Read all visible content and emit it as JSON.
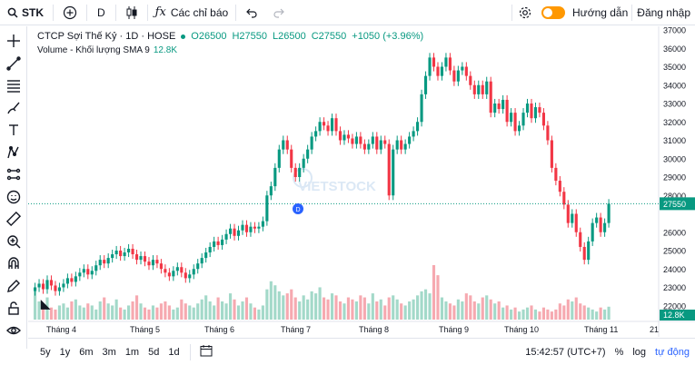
{
  "topbar": {
    "symbol": "STK",
    "interval": "D",
    "indicators_label": "Các chỉ báo",
    "guide_label": "Hướng dẫn",
    "login_label": "Đăng nhập"
  },
  "legend": {
    "title": "CTCP Sợi Thế Kỷ · 1D · HOSE",
    "open": "O26500",
    "high": "H27550",
    "low": "L26500",
    "close": "C27550",
    "change": "+1050 (+3.96%)",
    "volume_label": "Volume - Khối lượng SMA 9",
    "volume_value": "12.8K"
  },
  "watermark": "VIETSTOCK",
  "event_marker": "D",
  "colors": {
    "up": "#089981",
    "down": "#f23645",
    "accent": "#2962ff",
    "toggle": "#ff9800"
  },
  "chart_data": {
    "type": "candlestick",
    "price_axis": {
      "min": 21000,
      "max": 37000,
      "ticks": [
        "37000",
        "36000",
        "35000",
        "34000",
        "33000",
        "32000",
        "31000",
        "30000",
        "29000",
        "28000",
        "27550",
        "26000",
        "25000",
        "24000",
        "23000",
        "22000"
      ]
    },
    "last_price_label": "27550",
    "volume_label": "12.8K",
    "time_labels": [
      "Tháng 4",
      "Tháng 5",
      "Tháng 6",
      "Tháng 7",
      "Tháng 8",
      "Tháng 9",
      "Tháng 10",
      "Tháng 11",
      "21"
    ],
    "closes": [
      23000,
      23200,
      22900,
      23400,
      23100,
      22800,
      23000,
      23200,
      23500,
      23300,
      23600,
      23800,
      24000,
      23700,
      23900,
      24200,
      24500,
      24300,
      24600,
      24800,
      25000,
      24700,
      24900,
      25100,
      24800,
      24500,
      24700,
      24400,
      24200,
      24500,
      24300,
      24000,
      23800,
      23600,
      23900,
      24100,
      23800,
      23500,
      23700,
      24000,
      24300,
      24600,
      24900,
      25200,
      25500,
      25300,
      25600,
      25900,
      26200,
      25800,
      26100,
      26400,
      26000,
      26300,
      26200,
      26300,
      26600,
      28000,
      28500,
      29500,
      30500,
      31000,
      30500,
      29500,
      29000,
      29500,
      30000,
      30500,
      31200,
      31500,
      32000,
      31800,
      31500,
      32200,
      31500,
      31000,
      31300,
      31100,
      30800,
      31200,
      30800,
      30500,
      30800,
      31200,
      30500,
      31000,
      30800,
      28000,
      30500,
      31000,
      30500,
      30800,
      31200,
      31500,
      32000,
      33500,
      34500,
      35500,
      35000,
      34500,
      35000,
      35500,
      34800,
      34200,
      34800,
      35000,
      34500,
      34000,
      33500,
      34000,
      33500,
      34200,
      32500,
      33000,
      32700,
      33200,
      32000,
      32500,
      31500,
      31800,
      32500,
      33000,
      32200,
      32800,
      32500,
      31800,
      31000,
      29500,
      28800,
      28200,
      27500,
      26500,
      27000,
      26000,
      25200,
      24500,
      25500,
      26500,
      26800,
      26000,
      26500,
      27550
    ],
    "volumes_k": [
      32,
      18,
      15,
      22,
      12,
      10,
      14,
      16,
      12,
      18,
      20,
      14,
      12,
      16,
      14,
      10,
      18,
      22,
      16,
      14,
      20,
      12,
      10,
      14,
      18,
      24,
      16,
      12,
      10,
      14,
      12,
      16,
      18,
      14,
      10,
      12,
      20,
      16,
      14,
      12,
      16,
      20,
      24,
      18,
      14,
      22,
      18,
      16,
      26,
      20,
      14,
      18,
      22,
      16,
      12,
      10,
      14,
      30,
      38,
      34,
      28,
      24,
      26,
      30,
      22,
      18,
      24,
      20,
      28,
      26,
      32,
      22,
      20,
      26,
      24,
      18,
      16,
      22,
      20,
      18,
      24,
      22,
      16,
      26,
      18,
      20,
      14,
      22,
      24,
      20,
      16,
      14,
      18,
      20,
      24,
      28,
      30,
      26,
      54,
      44,
      22,
      18,
      16,
      14,
      20,
      18,
      26,
      24,
      18,
      16,
      22,
      24,
      20,
      16,
      18,
      12,
      14,
      10,
      12,
      8,
      10,
      12,
      14,
      10,
      8,
      12,
      10,
      8,
      10,
      16,
      14,
      20,
      18,
      22,
      16,
      14,
      12,
      10,
      8,
      12,
      10,
      12.8
    ]
  },
  "bottombar": {
    "ranges": [
      "5y",
      "1y",
      "6m",
      "3m",
      "1m",
      "5d",
      "1d"
    ],
    "time": "15:42:57 (UTC+7)",
    "percent": "%",
    "log": "log",
    "auto": "tự động"
  }
}
